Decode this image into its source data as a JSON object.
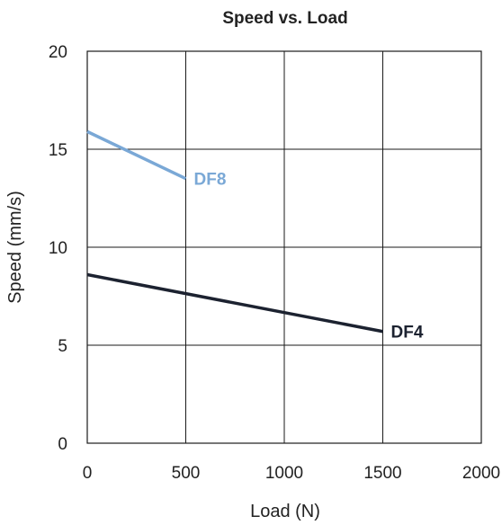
{
  "chart_data": {
    "type": "line",
    "title": "Speed vs. Load",
    "xlabel": "Load (N)",
    "ylabel": "Speed (mm/s)",
    "xlim": [
      0,
      2000
    ],
    "ylim": [
      0,
      20
    ],
    "xticks": [
      "0",
      "500",
      "1000",
      "1500",
      "2000"
    ],
    "yticks": [
      "0",
      "5",
      "10",
      "15",
      "20"
    ],
    "grid": true,
    "legend": "none",
    "series": [
      {
        "name": "DF8",
        "color": "#7aa8d6",
        "x": [
          0,
          500
        ],
        "y": [
          15.9,
          13.5
        ]
      },
      {
        "name": "DF4",
        "color": "#1c2230",
        "x": [
          0,
          1500
        ],
        "y": [
          8.6,
          5.7
        ]
      }
    ]
  }
}
